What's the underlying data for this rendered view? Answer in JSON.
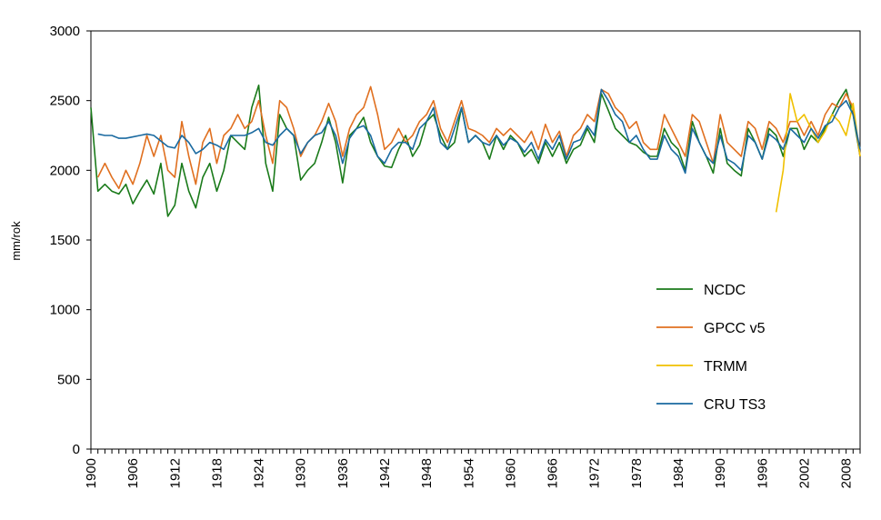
{
  "chart_data": {
    "type": "line",
    "title": "",
    "xlabel": "",
    "ylabel": "mm/rok",
    "ylim": [
      0,
      3000
    ],
    "yticks": [
      "0",
      "500",
      "1000",
      "1500",
      "2000",
      "2500",
      "3000"
    ],
    "xlim": [
      1900,
      2010
    ],
    "xtick_labels": [
      "1900",
      "1906",
      "1912",
      "1918",
      "1924",
      "1930",
      "1936",
      "1942",
      "1948",
      "1954",
      "1960",
      "1966",
      "1972",
      "1978",
      "1984",
      "1990",
      "1996",
      "2002",
      "2008"
    ],
    "grid": false,
    "legend_position": "right",
    "series": [
      {
        "name": "NCDC",
        "color": "#1a7a1a",
        "start_year": 1900,
        "values": [
          2450,
          1850,
          1900,
          1850,
          1830,
          1900,
          1760,
          1850,
          1930,
          1830,
          2050,
          1670,
          1750,
          2050,
          1850,
          1730,
          1950,
          2050,
          1850,
          2000,
          2250,
          2200,
          2150,
          2450,
          2610,
          2050,
          1850,
          2400,
          2300,
          2250,
          1930,
          2000,
          2050,
          2200,
          2380,
          2200,
          1910,
          2250,
          2300,
          2380,
          2200,
          2100,
          2030,
          2020,
          2150,
          2250,
          2100,
          2180,
          2350,
          2400,
          2250,
          2150,
          2200,
          2450,
          2200,
          2250,
          2200,
          2080,
          2250,
          2150,
          2250,
          2200,
          2100,
          2150,
          2050,
          2200,
          2100,
          2200,
          2050,
          2150,
          2180,
          2300,
          2200,
          2550,
          2430,
          2300,
          2250,
          2200,
          2180,
          2130,
          2100,
          2100,
          2300,
          2200,
          2150,
          2000,
          2350,
          2200,
          2100,
          1980,
          2300,
          2050,
          2000,
          1960,
          2300,
          2200,
          2080,
          2300,
          2250,
          2100,
          2300,
          2300,
          2150,
          2250,
          2200,
          2300,
          2400,
          2500,
          2580,
          2400,
          2100
        ]
      },
      {
        "name": "GPCC v5",
        "color": "#e07020",
        "start_year": 1900,
        "values": [
          null,
          1950,
          2050,
          1950,
          1870,
          2000,
          1900,
          2050,
          2250,
          2100,
          2250,
          2000,
          1950,
          2350,
          2100,
          1900,
          2200,
          2300,
          2050,
          2250,
          2300,
          2400,
          2300,
          2350,
          2500,
          2250,
          2050,
          2500,
          2450,
          2300,
          2100,
          2200,
          2250,
          2350,
          2480,
          2350,
          2100,
          2300,
          2400,
          2450,
          2600,
          2400,
          2150,
          2200,
          2300,
          2200,
          2250,
          2350,
          2400,
          2500,
          2300,
          2200,
          2350,
          2500,
          2300,
          2280,
          2250,
          2200,
          2300,
          2250,
          2300,
          2250,
          2200,
          2280,
          2150,
          2330,
          2200,
          2280,
          2100,
          2250,
          2300,
          2400,
          2350,
          2580,
          2550,
          2450,
          2400,
          2300,
          2350,
          2200,
          2150,
          2150,
          2400,
          2300,
          2200,
          2100,
          2400,
          2350,
          2200,
          2050,
          2400,
          2200,
          2150,
          2100,
          2350,
          2300,
          2150,
          2350,
          2300,
          2200,
          2350,
          2350,
          2250,
          2350,
          2250,
          2400,
          2480,
          2450,
          2550,
          2450,
          2100
        ]
      },
      {
        "name": "TRMM",
        "color": "#f0c000",
        "start_year": 1998,
        "values": [
          1700,
          2000,
          2550,
          2350,
          2400,
          2300,
          2200,
          2280,
          2400,
          2350,
          2250,
          2480,
          2100
        ]
      },
      {
        "name": "CRU TS3",
        "color": "#1a6aa0",
        "start_year": 1900,
        "values": [
          null,
          2260,
          2250,
          2250,
          2230,
          2230,
          2240,
          2250,
          2260,
          2250,
          2210,
          2170,
          2160,
          2250,
          2200,
          2120,
          2150,
          2200,
          2180,
          2150,
          2250,
          2250,
          2250,
          2270,
          2300,
          2200,
          2180,
          2250,
          2300,
          2250,
          2120,
          2200,
          2250,
          2270,
          2350,
          2250,
          2050,
          2230,
          2300,
          2320,
          2250,
          2100,
          2050,
          2150,
          2200,
          2200,
          2150,
          2300,
          2350,
          2450,
          2200,
          2150,
          2300,
          2450,
          2200,
          2250,
          2200,
          2180,
          2250,
          2180,
          2230,
          2200,
          2130,
          2200,
          2080,
          2220,
          2150,
          2250,
          2080,
          2200,
          2220,
          2320,
          2250,
          2580,
          2500,
          2400,
          2350,
          2200,
          2250,
          2150,
          2080,
          2080,
          2250,
          2150,
          2100,
          1980,
          2300,
          2200,
          2100,
          2050,
          2250,
          2080,
          2050,
          2000,
          2250,
          2200,
          2080,
          2260,
          2220,
          2150,
          2300,
          2250,
          2200,
          2300,
          2230,
          2320,
          2350,
          2450,
          2500,
          2400,
          2150
        ]
      }
    ]
  }
}
